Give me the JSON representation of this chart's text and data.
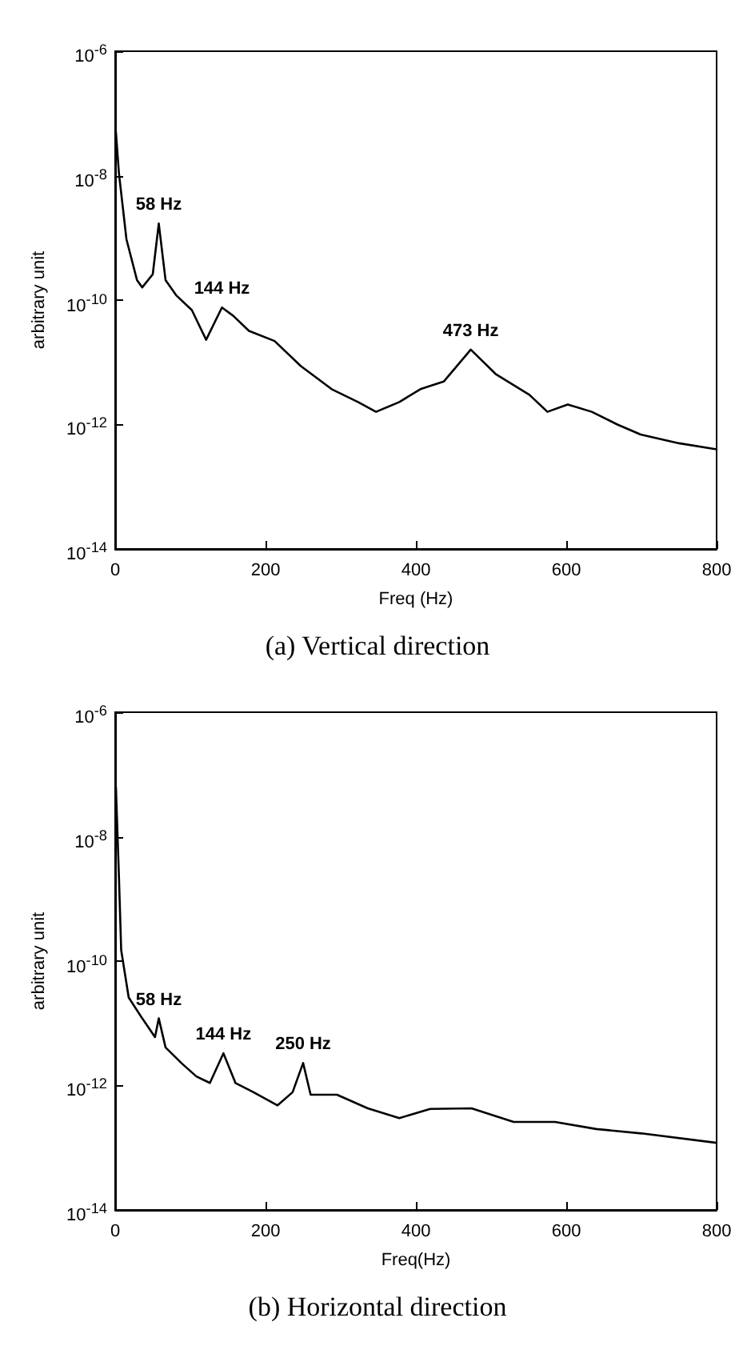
{
  "chart_data": [
    {
      "type": "line",
      "title": "(a) Vertical direction",
      "xlabel": "Freq (Hz)",
      "ylabel": "arbitrary unit",
      "log": "y",
      "grid": false,
      "marker": "none",
      "line_style": "solid",
      "xlim": [
        0,
        800
      ],
      "xticks": [
        0,
        200,
        400,
        600,
        800
      ],
      "ylim": [
        1e-14,
        1e-06
      ],
      "yticks": [
        {
          "value": 1e-14,
          "label": "10$^{-14}$"
        },
        {
          "value": 1e-12,
          "label": "10$^{-12}$"
        },
        {
          "value": 1e-10,
          "label": "10$^{-10}$"
        },
        {
          "value": 1e-08,
          "label": "10$^{-8}$"
        },
        {
          "value": 1e-06,
          "label": "10$^{-6}$"
        }
      ],
      "annotations": [
        {
          "text": "58 Hz",
          "x": 58,
          "y": 1.7e-09
        },
        {
          "text": "144 Hz",
          "x": 142,
          "y": 7.6e-11
        },
        {
          "text": "473 Hz",
          "x": 473,
          "y": 1.6e-11
        }
      ],
      "series": [
        {
          "color": "#000000",
          "x": [
            1,
            5,
            15,
            29,
            36,
            50,
            58,
            67,
            81,
            102,
            121,
            142,
            157,
            178,
            212,
            247,
            288,
            323,
            347,
            378,
            406,
            437,
            473,
            506,
            551,
            575,
            602,
            634,
            668,
            699,
            750,
            800
          ],
          "values": [
            5e-08,
            1.1e-08,
            9.5e-10,
            2.1e-10,
            1.6e-10,
            2.6e-10,
            1.7e-09,
            2.1e-10,
            1.2e-10,
            6.9e-11,
            2.3e-11,
            7.6e-11,
            5.6e-11,
            3.2e-11,
            2.2e-11,
            8.7e-12,
            3.7e-12,
            2.3e-12,
            1.6e-12,
            2.3e-12,
            3.7e-12,
            4.9e-12,
            1.6e-11,
            6.5e-12,
            3e-12,
            1.6e-12,
            2.1e-12,
            1.6e-12,
            1e-12,
            6.9e-13,
            5e-13,
            4e-13
          ]
        }
      ]
    },
    {
      "type": "line",
      "title": "(b) Horizontal direction",
      "xlabel": "Freq(Hz)",
      "ylabel": "arbitrary unit",
      "log": "y",
      "grid": false,
      "marker": "none",
      "line_style": "solid",
      "xlim": [
        0,
        800
      ],
      "xticks": [
        0,
        200,
        400,
        600,
        800
      ],
      "ylim": [
        1e-14,
        1e-06
      ],
      "yticks": [
        {
          "value": 1e-14,
          "label": "10$^{-14}$"
        },
        {
          "value": 1e-12,
          "label": "10$^{-12}$"
        },
        {
          "value": 1e-10,
          "label": "10$^{-10}$"
        },
        {
          "value": 1e-08,
          "label": "10$^{-8}$"
        },
        {
          "value": 1e-06,
          "label": "10$^{-6}$"
        }
      ],
      "annotations": [
        {
          "text": "58 Hz",
          "x": 58,
          "y": 1.2e-11
        },
        {
          "text": "144 Hz",
          "x": 144,
          "y": 3.3e-12
        },
        {
          "text": "250 Hz",
          "x": 250,
          "y": 2.3e-12
        }
      ],
      "series": [
        {
          "color": "#000000",
          "x": [
            1,
            5,
            8,
            18,
            36,
            53,
            58,
            67,
            88,
            108,
            126,
            144,
            160,
            184,
            216,
            236,
            250,
            260,
            295,
            336,
            378,
            419,
            474,
            530,
            585,
            640,
            700,
            800
          ],
          "values": [
            6.3e-08,
            2.3e-09,
            1.5e-10,
            2.6e-11,
            1.2e-11,
            6e-12,
            1.2e-11,
            4.1e-12,
            2.3e-12,
            1.4e-12,
            1.1e-12,
            3.3e-12,
            1.1e-12,
            7.8e-13,
            4.8e-13,
            7.8e-13,
            2.3e-12,
            7.1e-13,
            7.1e-13,
            4.3e-13,
            3e-13,
            4.2e-13,
            4.3e-13,
            2.6e-13,
            2.6e-13,
            2e-13,
            1.7e-13,
            1.2e-13
          ]
        }
      ]
    }
  ]
}
